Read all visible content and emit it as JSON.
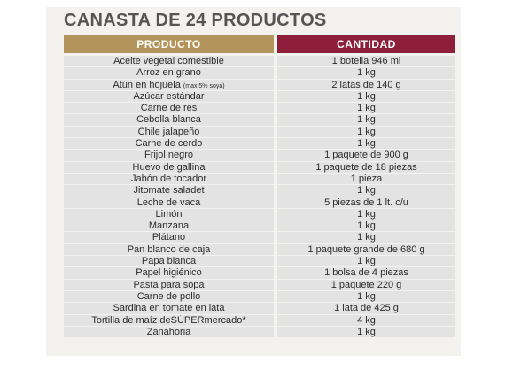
{
  "title": "CANASTA DE 24 PRODUCTOS",
  "headers": {
    "product": "PRODUCTO",
    "quantity": "CANTIDAD"
  },
  "colors": {
    "product_header": "#b3945a",
    "quantity_header": "#8e1f3a",
    "cell": "#e3e3e3",
    "title": "#555555"
  },
  "rows": [
    {
      "product": "Aceite vegetal comestible",
      "quantity": "1 botella 946 ml"
    },
    {
      "product": "Arroz en grano",
      "quantity": "1 kg"
    },
    {
      "product": "Atún en hojuela",
      "note": "(max 5% soya)",
      "quantity": "2 latas de 140 g"
    },
    {
      "product": "Azúcar estándar",
      "quantity": "1 kg"
    },
    {
      "product": "Carne de res",
      "quantity": "1 kg"
    },
    {
      "product": "Cebolla blanca",
      "quantity": "1 kg"
    },
    {
      "product": "Chile jalapeño",
      "quantity": "1 kg"
    },
    {
      "product": "Carne de cerdo",
      "quantity": "1 kg"
    },
    {
      "product": "Frijol negro",
      "quantity": "1 paquete de 900 g"
    },
    {
      "product": "Huevo de gallina",
      "quantity": "1 paquete de 18 piezas"
    },
    {
      "product": "Jabón de tocador",
      "quantity": "1 pieza"
    },
    {
      "product": "Jitomate saladet",
      "quantity": "1 kg"
    },
    {
      "product": "Leche de vaca",
      "quantity": "5 piezas de 1 lt. c/u"
    },
    {
      "product": "Limón",
      "quantity": "1 kg"
    },
    {
      "product": "Manzana",
      "quantity": "1 kg"
    },
    {
      "product": "Plátano",
      "quantity": "1 kg"
    },
    {
      "product": "Pan blanco de caja",
      "quantity": "1 paquete grande de 680 g"
    },
    {
      "product": "Papa blanca",
      "quantity": "1 kg"
    },
    {
      "product": "Papel higiénico",
      "quantity": "1 bolsa de 4 piezas"
    },
    {
      "product": "Pasta para sopa",
      "quantity": "1 paquete 220 g"
    },
    {
      "product": "Carne de pollo",
      "quantity": "1 kg"
    },
    {
      "product": "Sardina en tomate en lata",
      "quantity": "1 lata de 425 g"
    },
    {
      "product": "Tortilla de maíz deSÚPERmercado*",
      "quantity": "4 kg"
    },
    {
      "product": "Zanahoria",
      "quantity": "1 kg"
    }
  ]
}
